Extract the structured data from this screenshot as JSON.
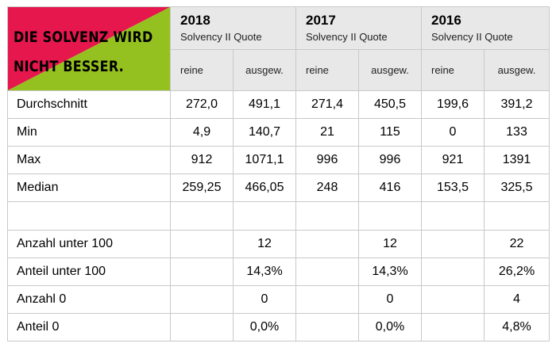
{
  "title": {
    "line1": "DIE SOLVENZ WIRD",
    "line2": "NICHT BESSER.",
    "colors": {
      "red": "#e5174d",
      "green": "#94c11f"
    }
  },
  "header": {
    "years": [
      {
        "year": "2018",
        "subtitle": "Solvency II Quote",
        "pure_label": "reine",
        "weighted_label": "ausgew."
      },
      {
        "year": "2017",
        "subtitle": "Solvency II Quote",
        "pure_label": "reine",
        "weighted_label": "ausgew."
      },
      {
        "year": "2016",
        "subtitle": "Solvency II Quote",
        "pure_label": "reine",
        "weighted_label": "ausgew."
      }
    ]
  },
  "rows": [
    {
      "label": "Durchschnitt",
      "values": [
        "272,0",
        "491,1",
        "271,4",
        "450,5",
        "199,6",
        "391,2"
      ]
    },
    {
      "label": "Min",
      "values": [
        "4,9",
        "140,7",
        "21",
        "115",
        "0",
        "133"
      ]
    },
    {
      "label": "Max",
      "values": [
        "912",
        "1071,1",
        "996",
        "996",
        "921",
        "1391"
      ]
    },
    {
      "label": "Median",
      "values": [
        "259,25",
        "466,05",
        "248",
        "416",
        "153,5",
        "325,5"
      ]
    },
    {
      "label": "",
      "values": [
        "",
        "",
        "",
        "",
        "",
        ""
      ]
    },
    {
      "label": "Anzahl unter 100",
      "values": [
        "",
        "12",
        "",
        "12",
        "",
        "22"
      ]
    },
    {
      "label": "Anteil unter 100",
      "values": [
        "",
        "14,3%",
        "",
        "14,3%",
        "",
        "26,2%"
      ]
    },
    {
      "label": "Anzahl 0",
      "values": [
        "",
        "0",
        "",
        "0",
        "",
        "4"
      ]
    },
    {
      "label": "Anteil 0",
      "values": [
        "",
        "0,0%",
        "",
        "0,0%",
        "",
        "4,8%"
      ]
    }
  ]
}
